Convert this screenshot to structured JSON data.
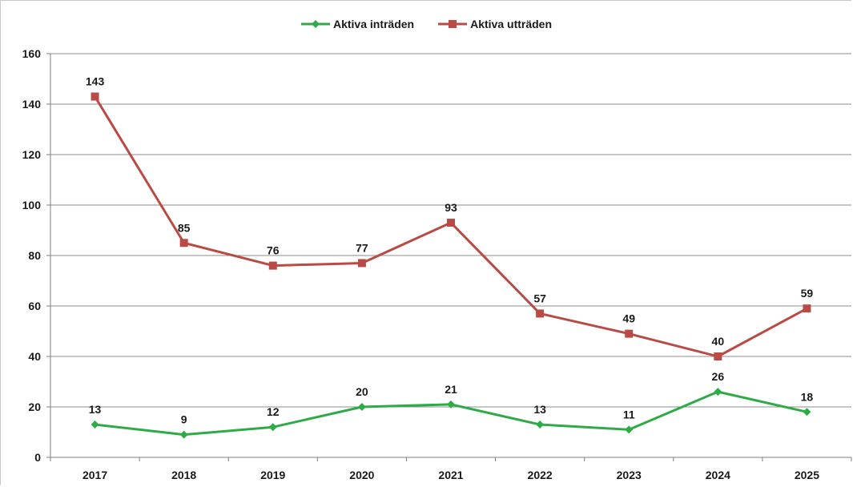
{
  "chart_data": {
    "type": "line",
    "title": "",
    "xlabel": "",
    "ylabel": "",
    "categories": [
      "2017",
      "2018",
      "2019",
      "2020",
      "2021",
      "2022",
      "2023",
      "2024",
      "2025"
    ],
    "ylim": [
      0,
      160
    ],
    "yticks": [
      0,
      20,
      40,
      60,
      80,
      100,
      120,
      140,
      160
    ],
    "grid": true,
    "legend_position": "top-center",
    "series": [
      {
        "name": "Aktiva inträden",
        "color": "#2eab47",
        "marker": "diamond",
        "values": [
          13,
          9,
          12,
          20,
          21,
          13,
          11,
          26,
          18
        ]
      },
      {
        "name": "Aktiva utträden",
        "color": "#b94a45",
        "marker": "square",
        "values": [
          143,
          85,
          76,
          77,
          93,
          57,
          49,
          40,
          59
        ]
      }
    ]
  }
}
